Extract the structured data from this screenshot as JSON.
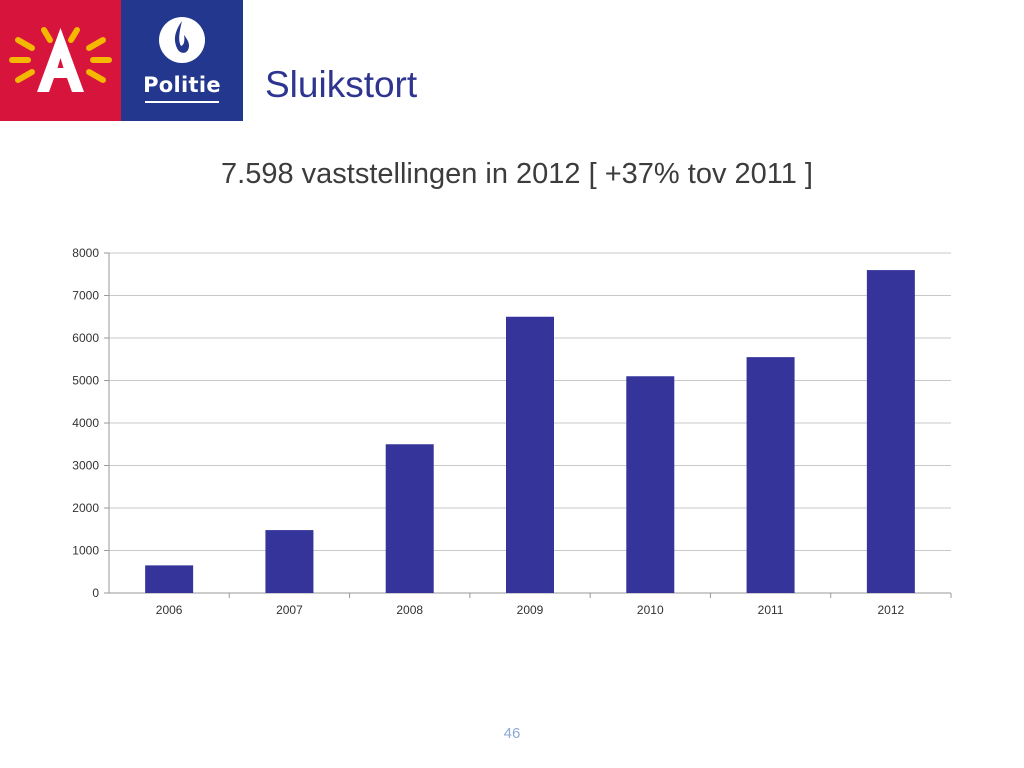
{
  "header": {
    "logo_city": "Antwerpen",
    "logo_city_letter": "A",
    "logo_police_label": "Politie",
    "title": "Sluikstort"
  },
  "subtitle": "7.598 vaststellingen in 2012 [ +37% tov 2011 ]",
  "colors": {
    "antwerp_red": "#d7143c",
    "police_blue": "#22378d",
    "title_blue": "#2e3590",
    "bar": "#35349a"
  },
  "chart_data": {
    "type": "bar",
    "categories": [
      "2006",
      "2007",
      "2008",
      "2009",
      "2010",
      "2011",
      "2012"
    ],
    "values": [
      650,
      1480,
      3500,
      6500,
      5100,
      5550,
      7598
    ],
    "title": "",
    "xlabel": "",
    "ylabel": "",
    "ylim": [
      0,
      8000
    ],
    "yticks": [
      0,
      1000,
      2000,
      3000,
      4000,
      5000,
      6000,
      7000,
      8000
    ],
    "grid": true,
    "legend": "none"
  },
  "footer": {
    "page_number": "46"
  }
}
